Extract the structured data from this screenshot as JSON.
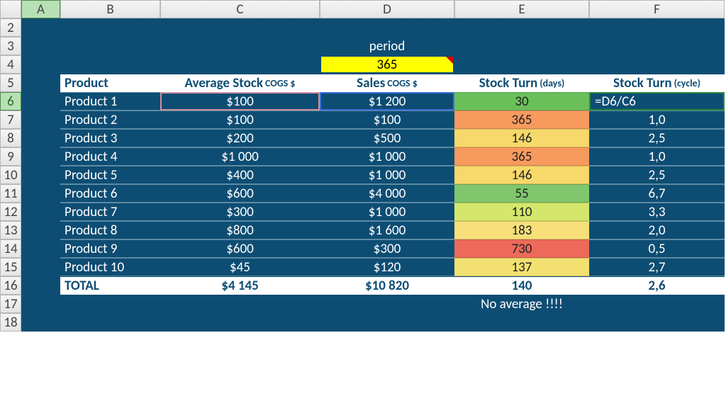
{
  "columns": [
    "A",
    "B",
    "C",
    "D",
    "E",
    "F"
  ],
  "rows": [
    2,
    3,
    4,
    5,
    6,
    7,
    8,
    9,
    10,
    11,
    12,
    13,
    14,
    15,
    16,
    17,
    18
  ],
  "activeColumn": "A",
  "activeRow": 6,
  "period": {
    "label": "period",
    "value": "365"
  },
  "headers": {
    "product": "Product",
    "avgStock": "Average Stock",
    "avgStockSub": "COGS $",
    "sales": "Sales",
    "salesSub": "COGS $",
    "turnDays": "Stock Turn",
    "turnDaysSub": "(days)",
    "turnCycle": "Stock Turn",
    "turnCycleSub": "(cycle)"
  },
  "heatColors": [
    "#6bbf59",
    "#f79a5e",
    "#f7d96b",
    "#f79a5e",
    "#f7d96b",
    "#7fc66c",
    "#d4e66b",
    "#f7e07a",
    "#ed6a5a",
    "#f2e170"
  ],
  "products": [
    {
      "name": "Product 1",
      "avg": "$100",
      "sales": "$1 200",
      "days": "30",
      "cycle": "=D6/C6"
    },
    {
      "name": "Product 2",
      "avg": "$100",
      "sales": "$100",
      "days": "365",
      "cycle": "1,0"
    },
    {
      "name": "Product 3",
      "avg": "$200",
      "sales": "$500",
      "days": "146",
      "cycle": "2,5"
    },
    {
      "name": "Product 4",
      "avg": "$1 000",
      "sales": "$1 000",
      "days": "365",
      "cycle": "1,0"
    },
    {
      "name": "Product 5",
      "avg": "$400",
      "sales": "$1 000",
      "days": "146",
      "cycle": "2,5"
    },
    {
      "name": "Product 6",
      "avg": "$600",
      "sales": "$4 000",
      "days": "55",
      "cycle": "6,7"
    },
    {
      "name": "Product 7",
      "avg": "$300",
      "sales": "$1 000",
      "days": "110",
      "cycle": "3,3"
    },
    {
      "name": "Product 8",
      "avg": "$800",
      "sales": "$1 600",
      "days": "183",
      "cycle": "2,0"
    },
    {
      "name": "Product 9",
      "avg": "$600",
      "sales": "$300",
      "days": "730",
      "cycle": "0,5"
    },
    {
      "name": "Product 10",
      "avg": "$45",
      "sales": "$120",
      "days": "137",
      "cycle": "2,7"
    }
  ],
  "total": {
    "label": "TOTAL",
    "avg": "$4 145",
    "sales": "$10 820",
    "days": "140",
    "cycle": "2,6"
  },
  "note": "No average !!!!",
  "backgroundColor": "#0e4d73",
  "headerBg": "#ffffff",
  "headerText": "#0e4d73"
}
